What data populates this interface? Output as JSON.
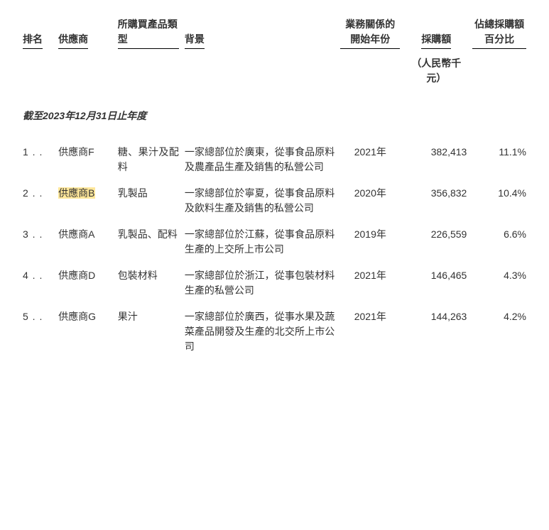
{
  "headers": {
    "rank": "排名",
    "supplier": "供應商",
    "product": "所購買產品類型",
    "background": "背景",
    "start_year": "業務關係的開始年份",
    "amount": "採購額",
    "percent": "佔總採購額百分比"
  },
  "subheader_amount": "（人民幣千元）",
  "section_title": "截至2023年12月31日止年度",
  "rows": [
    {
      "rank": "1 . .",
      "supplier": "供應商F",
      "product": "糖、果汁及配料",
      "background": "一家總部位於廣東，從事食品原料及農產品生產及銷售的私營公司",
      "year": "2021年",
      "amount": "382,413",
      "percent": "11.1%",
      "highlight": false
    },
    {
      "rank": "2 . .",
      "supplier": "供應商B",
      "product": "乳製品",
      "background": "一家總部位於寧夏，從事食品原料及飲料生產及銷售的私營公司",
      "year": "2020年",
      "amount": "356,832",
      "percent": "10.4%",
      "highlight": true
    },
    {
      "rank": "3 . .",
      "supplier": "供應商A",
      "product": "乳製品、配料",
      "background": "一家總部位於江蘇，從事食品原料生產的上交所上市公司",
      "year": "2019年",
      "amount": "226,559",
      "percent": "6.6%",
      "highlight": false
    },
    {
      "rank": "4 . .",
      "supplier": "供應商D",
      "product": "包裝材料",
      "background": "一家總部位於浙江，從事包裝材料生產的私營公司",
      "year": "2021年",
      "amount": "146,465",
      "percent": "4.3%",
      "highlight": false
    },
    {
      "rank": "5 . .",
      "supplier": "供應商G",
      "product": "果汁",
      "background": "一家總部位於廣西，從事水果及蔬菜產品開發及生產的北交所上市公司",
      "year": "2021年",
      "amount": "144,263",
      "percent": "4.2%",
      "highlight": false
    }
  ]
}
